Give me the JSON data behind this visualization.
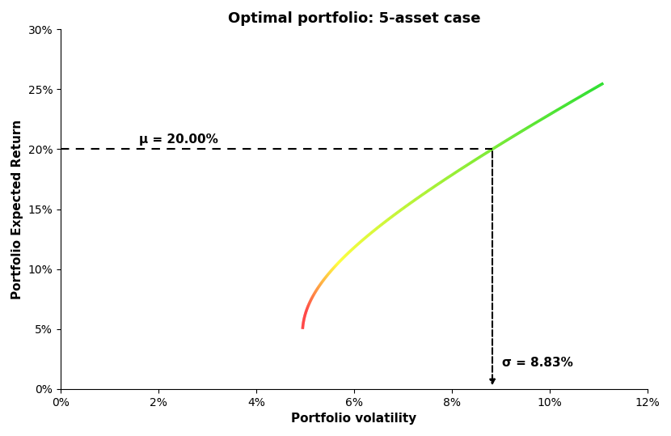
{
  "title": "Optimal portfolio: 5-asset case",
  "xlabel": "Portfolio volatility",
  "ylabel": "Portfolio Expected Return",
  "xlim": [
    0,
    0.12
  ],
  "ylim": [
    0,
    0.3
  ],
  "xticks": [
    0,
    0.02,
    0.04,
    0.06,
    0.08,
    0.1,
    0.12
  ],
  "yticks": [
    0,
    0.05,
    0.1,
    0.15,
    0.2,
    0.25,
    0.3
  ],
  "optimal_sigma": 0.0883,
  "optimal_mu": 0.2,
  "mu_label": "μ = 20.00%",
  "sigma_label": "σ = 8.83%",
  "red_mu_max": 0.065,
  "yellow_mu_max": 0.105,
  "title_fontsize": 13,
  "label_fontsize": 11,
  "tick_fontsize": 10,
  "curve_lw": 2.5,
  "dashes_on": 5,
  "dashes_off": 4
}
